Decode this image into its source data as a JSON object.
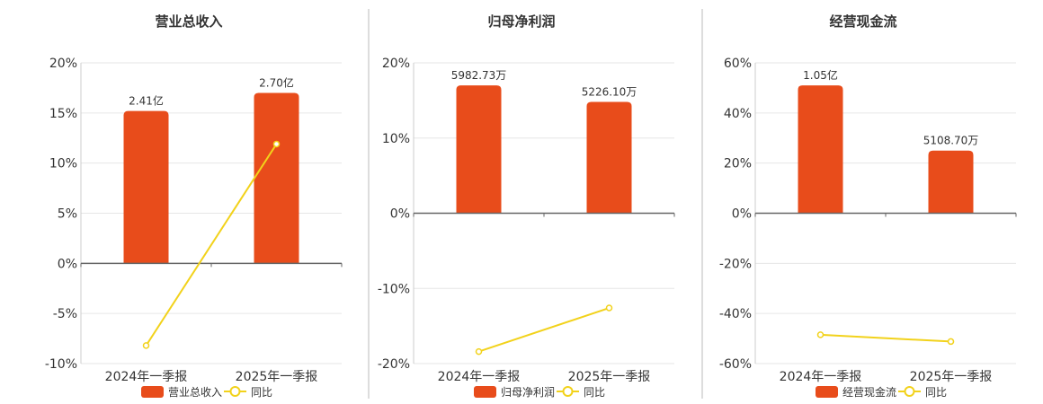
{
  "chart_data": [
    {
      "type": "bar",
      "title": "营业总收入",
      "categories": [
        "2024年一季报",
        "2025年一季报"
      ],
      "series": [
        {
          "name": "营业总收入",
          "kind": "bar",
          "values": [
            15.2,
            17.0
          ],
          "labels": [
            "2.41亿",
            "2.70亿"
          ]
        },
        {
          "name": "同比",
          "kind": "line",
          "values": [
            -8.2,
            11.9
          ]
        }
      ],
      "ylim": [
        -10,
        20
      ],
      "yticks": [
        20,
        15,
        10,
        5,
        0,
        -5,
        -10
      ],
      "ytick_labels": [
        "20%",
        "15%",
        "10%",
        "5%",
        "0%",
        "-5%",
        "-10%"
      ]
    },
    {
      "type": "bar",
      "title": "归母净利润",
      "categories": [
        "2024年一季报",
        "2025年一季报"
      ],
      "series": [
        {
          "name": "归母净利润",
          "kind": "bar",
          "values": [
            17.0,
            14.8
          ],
          "labels": [
            "5982.73万",
            "5226.10万"
          ]
        },
        {
          "name": "同比",
          "kind": "line",
          "values": [
            -18.4,
            -12.6
          ]
        }
      ],
      "ylim": [
        -20,
        20
      ],
      "yticks": [
        20,
        10,
        0,
        -10,
        -20
      ],
      "ytick_labels": [
        "20%",
        "10%",
        "0%",
        "-10%",
        "-20%"
      ]
    },
    {
      "type": "bar",
      "title": "经营现金流",
      "categories": [
        "2024年一季报",
        "2025年一季报"
      ],
      "series": [
        {
          "name": "经营现金流",
          "kind": "bar",
          "values": [
            51.0,
            25.0
          ],
          "labels": [
            "1.05亿",
            "5108.70万"
          ]
        },
        {
          "name": "同比",
          "kind": "line",
          "values": [
            -48.5,
            -51.2
          ]
        }
      ],
      "ylim": [
        -60,
        60
      ],
      "yticks": [
        60,
        40,
        20,
        0,
        -20,
        -40,
        -60
      ],
      "ytick_labels": [
        "60%",
        "40%",
        "20%",
        "0%",
        "-20%",
        "-40%",
        "-60%"
      ]
    }
  ],
  "colors": {
    "bar": "#e84c1b",
    "line": "#f2d21b",
    "grid": "#e6e6e6",
    "axis": "#666666",
    "divider": "#bbbbbb"
  }
}
